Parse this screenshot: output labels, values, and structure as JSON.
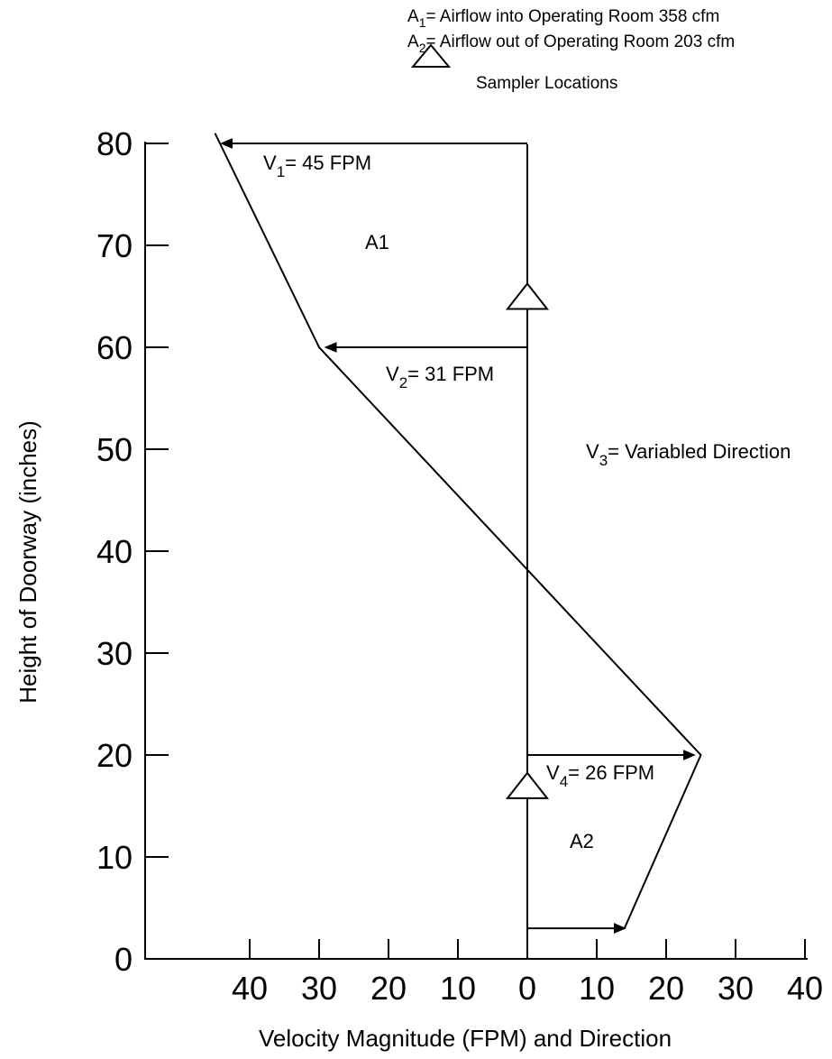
{
  "chart_data": {
    "type": "line",
    "xlabel": "Velocity Magnitude (FPM) and Direction",
    "ylabel": "Height of Doorway (inches)",
    "ylim": [
      0,
      80
    ],
    "y_ticks": [
      "0",
      "10",
      "20",
      "30",
      "40",
      "50",
      "60",
      "70",
      "80"
    ],
    "x_ticks": [
      {
        "value": -40,
        "label": "40"
      },
      {
        "value": -30,
        "label": "30"
      },
      {
        "value": -20,
        "label": "20"
      },
      {
        "value": -10,
        "label": "10"
      },
      {
        "value": 0,
        "label": "0"
      },
      {
        "value": 10,
        "label": "10"
      },
      {
        "value": 20,
        "label": "20"
      },
      {
        "value": 30,
        "label": "30"
      },
      {
        "value": 40,
        "label": "40"
      }
    ],
    "velocity_profile": [
      {
        "x": -45,
        "y": 81
      },
      {
        "x": -30,
        "y": 60
      },
      {
        "x": 25,
        "y": 20
      },
      {
        "x": 14,
        "y": 3
      }
    ],
    "arrows": [
      {
        "y": 80,
        "x_to": -44
      },
      {
        "y": 60,
        "x_to": -29
      },
      {
        "y": 20,
        "x_to": 24
      },
      {
        "y": 3,
        "x_to": 14
      }
    ],
    "sampler_heights": [
      65,
      17
    ],
    "legend": {
      "line1": {
        "base": "A",
        "sub": "1",
        "text": "= Airflow into Operating Room 358 cfm"
      },
      "line2": {
        "base": "A",
        "sub": "2",
        "text": "= Airflow out of Operating Room 203 cfm"
      },
      "sampler_label": "Sampler Locations"
    },
    "annotations": {
      "v1": {
        "base": "V",
        "sub": "1",
        "text": "= 45 FPM"
      },
      "v2": {
        "base": "V",
        "sub": "2",
        "text": "= 31 FPM"
      },
      "v3": {
        "base": "V",
        "sub": "3",
        "text": "= Variabled Direction"
      },
      "v4": {
        "base": "V",
        "sub": "4",
        "text": "= 26 FPM"
      },
      "a1": "A1",
      "a2": "A2"
    }
  }
}
